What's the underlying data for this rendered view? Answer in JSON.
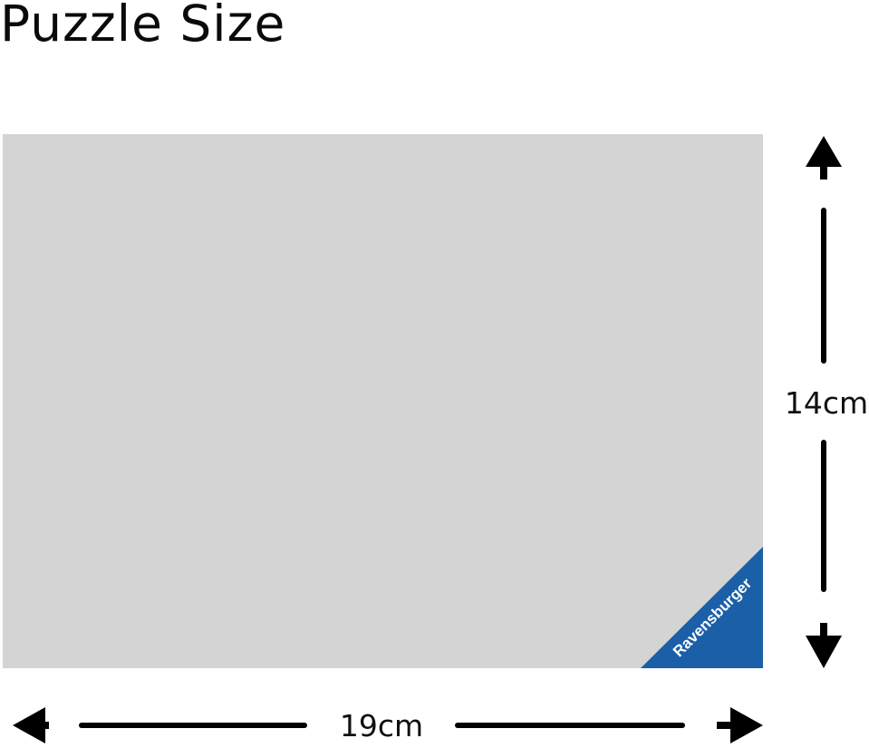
{
  "title": "Puzzle Size",
  "puzzle": {
    "fill_color": "#d4d4d4",
    "brand_label": "Ravensburger",
    "brand_color": "#1a5fa8"
  },
  "dimensions": {
    "height_label": "14cm",
    "width_label": "19cm"
  }
}
